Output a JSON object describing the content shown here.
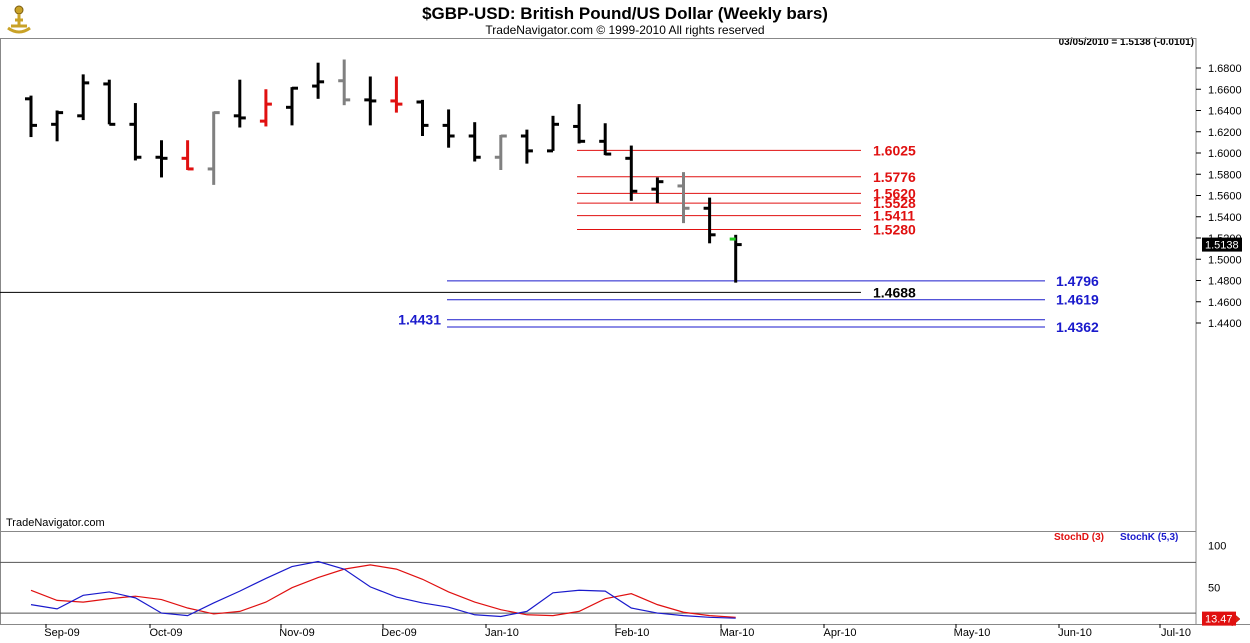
{
  "header": {
    "title": "$GBP-USD:  British Pound/US Dollar  (Weekly bars)",
    "subtitle": "TradeNavigator.com © 1999-2010 All rights reserved",
    "readout": "03/05/2010 = 1.5138 (-0.0101)",
    "watermark": "TradeNavigator.com"
  },
  "colors": {
    "up_bar": "#000000",
    "down_bar": "#e01010",
    "neutral_bar": "#808080",
    "last_open": "#22cc22",
    "resistance": "#e01010",
    "support": "#1a1acc",
    "stoch_d": "#e01010",
    "stoch_k": "#1a1acc"
  },
  "chart_data": [
    {
      "type": "ohlc",
      "title": "$GBP-USD:  British Pound/US Dollar  (Weekly bars)",
      "ylim": [
        1.43,
        1.69
      ],
      "y_ticks": [
        "1.6800",
        "1.6600",
        "1.6400",
        "1.6200",
        "1.6000",
        "1.5800",
        "1.5600",
        "1.5400",
        "1.5200",
        "1.5000",
        "1.4800",
        "1.4600",
        "1.4400"
      ],
      "x_month_labels": [
        "Sep-09",
        "Oct-09",
        "Nov-09",
        "Dec-09",
        "Jan-10",
        "Feb-10",
        "Mar-10",
        "Apr-10",
        "May-10",
        "Jun-10",
        "Jul-10"
      ],
      "last_price": "1.5138",
      "bars": [
        {
          "week": 1,
          "o": 1.651,
          "h": 1.654,
          "l": 1.615,
          "c": 1.626,
          "color": "up"
        },
        {
          "week": 2,
          "o": 1.627,
          "h": 1.64,
          "l": 1.611,
          "c": 1.638,
          "color": "up"
        },
        {
          "week": 3,
          "o": 1.635,
          "h": 1.674,
          "l": 1.631,
          "c": 1.666,
          "color": "up"
        },
        {
          "week": 4,
          "o": 1.665,
          "h": 1.669,
          "l": 1.627,
          "c": 1.627,
          "color": "up"
        },
        {
          "week": 5,
          "o": 1.627,
          "h": 1.647,
          "l": 1.593,
          "c": 1.596,
          "color": "up"
        },
        {
          "week": 6,
          "o": 1.596,
          "h": 1.612,
          "l": 1.577,
          "c": 1.595,
          "color": "up"
        },
        {
          "week": 7,
          "o": 1.595,
          "h": 1.612,
          "l": 1.584,
          "c": 1.585,
          "color": "down"
        },
        {
          "week": 8,
          "o": 1.585,
          "h": 1.639,
          "l": 1.57,
          "c": 1.638,
          "color": "neutral"
        },
        {
          "week": 9,
          "o": 1.635,
          "h": 1.669,
          "l": 1.624,
          "c": 1.633,
          "color": "up"
        },
        {
          "week": 10,
          "o": 1.63,
          "h": 1.66,
          "l": 1.625,
          "c": 1.646,
          "color": "down"
        },
        {
          "week": 11,
          "o": 1.643,
          "h": 1.662,
          "l": 1.626,
          "c": 1.661,
          "color": "up"
        },
        {
          "week": 12,
          "o": 1.663,
          "h": 1.685,
          "l": 1.651,
          "c": 1.667,
          "color": "up"
        },
        {
          "week": 13,
          "o": 1.668,
          "h": 1.688,
          "l": 1.645,
          "c": 1.65,
          "color": "neutral"
        },
        {
          "week": 14,
          "o": 1.65,
          "h": 1.672,
          "l": 1.626,
          "c": 1.649,
          "color": "up"
        },
        {
          "week": 15,
          "o": 1.649,
          "h": 1.672,
          "l": 1.638,
          "c": 1.646,
          "color": "down"
        },
        {
          "week": 16,
          "o": 1.648,
          "h": 1.65,
          "l": 1.616,
          "c": 1.626,
          "color": "up"
        },
        {
          "week": 17,
          "o": 1.626,
          "h": 1.641,
          "l": 1.605,
          "c": 1.616,
          "color": "up"
        },
        {
          "week": 18,
          "o": 1.616,
          "h": 1.629,
          "l": 1.592,
          "c": 1.596,
          "color": "up"
        },
        {
          "week": 19,
          "o": 1.596,
          "h": 1.617,
          "l": 1.584,
          "c": 1.616,
          "color": "neutral"
        },
        {
          "week": 20,
          "o": 1.616,
          "h": 1.622,
          "l": 1.59,
          "c": 1.602,
          "color": "up"
        },
        {
          "week": 21,
          "o": 1.602,
          "h": 1.635,
          "l": 1.602,
          "c": 1.627,
          "color": "up"
        },
        {
          "week": 22,
          "o": 1.625,
          "h": 1.646,
          "l": 1.609,
          "c": 1.611,
          "color": "up"
        },
        {
          "week": 23,
          "o": 1.611,
          "h": 1.628,
          "l": 1.598,
          "c": 1.599,
          "color": "up"
        },
        {
          "week": 24,
          "o": 1.595,
          "h": 1.607,
          "l": 1.555,
          "c": 1.564,
          "color": "up"
        },
        {
          "week": 25,
          "o": 1.566,
          "h": 1.577,
          "l": 1.553,
          "c": 1.573,
          "color": "up"
        },
        {
          "week": 26,
          "o": 1.569,
          "h": 1.582,
          "l": 1.534,
          "c": 1.548,
          "color": "neutral"
        },
        {
          "week": 27,
          "o": 1.548,
          "h": 1.558,
          "l": 1.515,
          "c": 1.523,
          "color": "up"
        },
        {
          "week": 28,
          "o": 1.519,
          "h": 1.523,
          "l": 1.478,
          "c": 1.5138,
          "color": "up",
          "open_color": "last"
        }
      ],
      "levels": [
        {
          "value": 1.6025,
          "label": "1.6025",
          "group": "resistance"
        },
        {
          "value": 1.5776,
          "label": "1.5776",
          "group": "resistance"
        },
        {
          "value": 1.562,
          "label": "1.5620",
          "group": "resistance"
        },
        {
          "value": 1.5528,
          "label": "1.5528",
          "group": "resistance"
        },
        {
          "value": 1.5411,
          "label": "1.5411",
          "group": "resistance"
        },
        {
          "value": 1.528,
          "label": "1.5280",
          "group": "resistance"
        },
        {
          "value": 1.4796,
          "label": "1.4796",
          "group": "support"
        },
        {
          "value": 1.4688,
          "label": "1.4688",
          "group": "pivot"
        },
        {
          "value": 1.4619,
          "label": "1.4619",
          "group": "support"
        },
        {
          "value": 1.4431,
          "label": "1.4431",
          "group": "support",
          "label_side": "left"
        },
        {
          "value": 1.4362,
          "label": "1.4362",
          "group": "support"
        }
      ]
    },
    {
      "type": "line",
      "ylim": [
        0,
        110
      ],
      "y_ticks": [
        "100",
        "50"
      ],
      "legend": [
        "StochD (3)",
        "StochK (5,3)"
      ],
      "last_value": "13.47",
      "series": [
        {
          "name": "StochD (3)",
          "values": [
            47,
            35,
            33,
            37,
            40,
            36,
            26,
            19,
            22,
            33,
            50,
            62,
            72,
            77,
            72,
            60,
            45,
            33,
            24,
            18,
            17,
            22,
            37,
            43,
            30,
            21,
            17,
            15
          ]
        },
        {
          "name": "StochK (5,3)",
          "values": [
            30,
            25,
            41,
            45,
            38,
            20,
            17,
            32,
            46,
            61,
            75,
            81,
            72,
            51,
            39,
            32,
            27,
            18,
            16,
            22,
            44,
            47,
            46,
            26,
            20,
            17,
            15,
            14
          ]
        }
      ]
    }
  ]
}
